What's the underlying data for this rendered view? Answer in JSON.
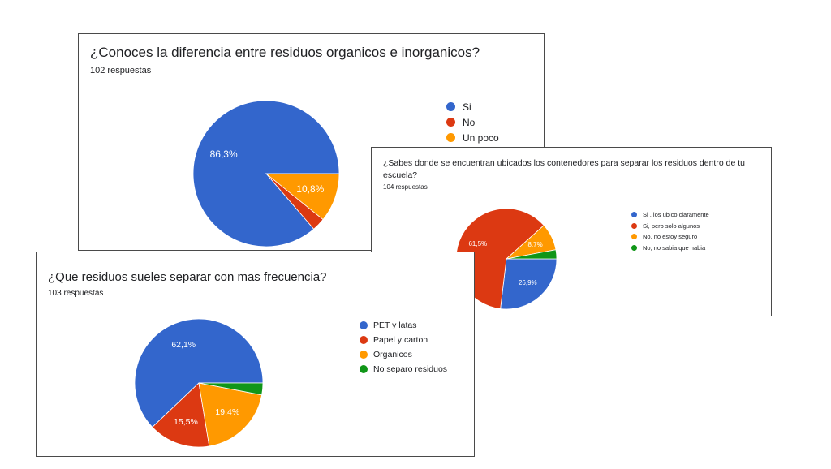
{
  "chart_data": [
    {
      "type": "pie",
      "title": "¿Conoces la diferencia entre residuos organicos e inorganicos?",
      "subtitle": "102 respuestas",
      "slices": [
        {
          "label": "Si",
          "value": 86.3,
          "value_label": "86,3%",
          "color": "#3366cc"
        },
        {
          "label": "No",
          "value": 2.9,
          "value_label": "",
          "color": "#dc3912"
        },
        {
          "label": "Un poco",
          "value": 10.8,
          "value_label": "10,8%",
          "color": "#ff9900"
        }
      ],
      "start": "3 o'clock",
      "direction": "counterclockwise",
      "legend_position": "right"
    },
    {
      "type": "pie",
      "title": "¿Que residuos sueles separar con mas frecuencia?",
      "subtitle": "103 respuestas",
      "slices": [
        {
          "label": "PET y latas",
          "value": 62.1,
          "value_label": "62,1%",
          "color": "#3366cc"
        },
        {
          "label": "Papel y carton",
          "value": 15.5,
          "value_label": "15,5%",
          "color": "#dc3912"
        },
        {
          "label": "Organicos",
          "value": 19.4,
          "value_label": "19,4%",
          "color": "#ff9900"
        },
        {
          "label": "No separo residuos",
          "value": 3.0,
          "value_label": "",
          "color": "#109618"
        }
      ],
      "start": "3 o'clock",
      "direction": "counterclockwise",
      "legend_position": "right"
    },
    {
      "type": "pie",
      "title": "¿Sabes donde se encuentran ubicados los contenedores para separar los residuos dentro de tu escuela?",
      "subtitle": "104 respuestas",
      "slices": [
        {
          "label": "Si , los ubico claramente",
          "value": 26.9,
          "value_label": "26,9%",
          "color": "#3366cc"
        },
        {
          "label": "Si, pero solo algunos",
          "value": 61.5,
          "value_label": "61,5%",
          "color": "#dc3912"
        },
        {
          "label": "No, no estoy seguro",
          "value": 8.7,
          "value_label": "8,7%",
          "color": "#ff9900"
        },
        {
          "label": "No, no sabia que habia",
          "value": 2.9,
          "value_label": "",
          "color": "#109618"
        }
      ],
      "start": "3 o'clock",
      "direction": "clockwise",
      "legend_position": "right"
    }
  ]
}
